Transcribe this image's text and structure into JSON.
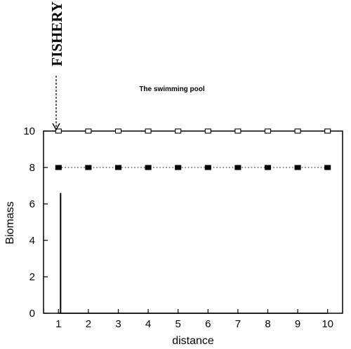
{
  "chart_data": {
    "type": "line",
    "title": "The swimming pool",
    "annotation": "FISHERY",
    "xlabel": "distance",
    "ylabel": "Biomass",
    "x": [
      1,
      2,
      3,
      4,
      5,
      6,
      7,
      8,
      9,
      10
    ],
    "xlim": [
      0.5,
      10.5
    ],
    "ylim": [
      0,
      10
    ],
    "x_ticks": [
      "1",
      "2",
      "3",
      "4",
      "5",
      "6",
      "7",
      "8",
      "9",
      "10"
    ],
    "y_ticks": [
      "0",
      "2",
      "4",
      "6",
      "8",
      "10"
    ],
    "grid": false,
    "series": [
      {
        "marker": "open-square",
        "line": "solid",
        "values": [
          10,
          10,
          10,
          10,
          10,
          10,
          10,
          10,
          10,
          10
        ]
      },
      {
        "marker": "filled-square",
        "line": "dotted",
        "values": [
          8,
          8,
          8,
          8,
          8,
          8,
          8,
          8,
          8,
          8
        ]
      },
      {
        "marker": "none",
        "line": "solid",
        "values": [
          0,
          0,
          0,
          0,
          0,
          0,
          0,
          0,
          0,
          0
        ]
      }
    ],
    "fishery_x": 1,
    "spike_max": 6.6
  }
}
